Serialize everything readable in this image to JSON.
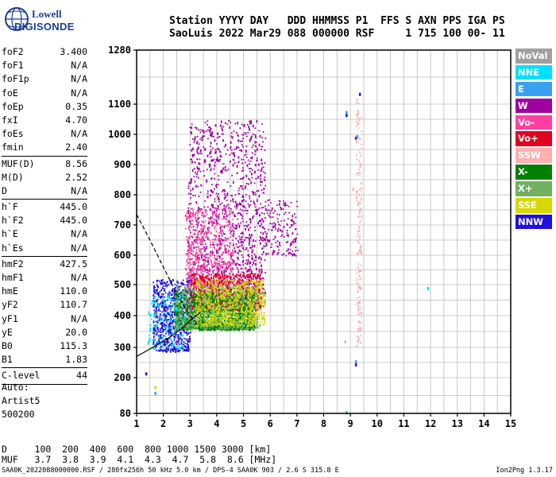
{
  "logo": {
    "line1": "Lowell",
    "line2": "DIGISONDE"
  },
  "header": {
    "line1": "Station YYYY DAY   DDD HHMMSS P1  FFS S AXN PPS IGA PS",
    "line2": "SaoLuis 2022 Mar29 088 000000 RSF     1 715 100 00- 11"
  },
  "params": [
    {
      "name": "foF2",
      "value": "3.400"
    },
    {
      "name": "foF1",
      "value": "N/A"
    },
    {
      "name": "foF1p",
      "value": "N/A"
    },
    {
      "name": "foE",
      "value": "N/A"
    },
    {
      "name": "foEp",
      "value": "0.35"
    },
    {
      "name": "fxI",
      "value": "4.70"
    },
    {
      "name": "foEs",
      "value": "N/A"
    },
    {
      "name": "fmin",
      "value": "2.40"
    },
    {
      "sep": true
    },
    {
      "name": "MUF(D)",
      "value": "8.56"
    },
    {
      "name": "M(D)",
      "value": "2.52"
    },
    {
      "name": "D",
      "value": "N/A"
    },
    {
      "sep": true
    },
    {
      "name": "h`F",
      "value": "445.0"
    },
    {
      "name": "h`F2",
      "value": "445.0"
    },
    {
      "name": "h`E",
      "value": "N/A"
    },
    {
      "name": "h`Es",
      "value": "N/A"
    },
    {
      "sep": true
    },
    {
      "name": "hmF2",
      "value": "427.5"
    },
    {
      "name": "hmF1",
      "value": "N/A"
    },
    {
      "name": "hmE",
      "value": "110.0"
    },
    {
      "name": "yF2",
      "value": "110.7"
    },
    {
      "name": "yF1",
      "value": "N/A"
    },
    {
      "name": "yE",
      "value": "20.0"
    },
    {
      "name": "B0",
      "value": "115.3"
    },
    {
      "name": "B1",
      "value": "1.83"
    },
    {
      "sep": true
    },
    {
      "name": "C-level",
      "value": "44"
    },
    {
      "sep": true
    }
  ],
  "autoscale": [
    "Auto:",
    "Artist5",
    "500200"
  ],
  "legend": [
    {
      "label": "NoVal",
      "color": "#a0a0a0"
    },
    {
      "label": "NNE",
      "color": "#00e0ff"
    },
    {
      "label": "E",
      "color": "#3aa0f0"
    },
    {
      "label": "W",
      "color": "#a000a0"
    },
    {
      "label": "Vo-",
      "color": "#ff40a0"
    },
    {
      "label": "Vo+",
      "color": "#e00020"
    },
    {
      "label": "SSW",
      "color": "#ffb0b0"
    },
    {
      "label": "X-",
      "color": "#008000"
    },
    {
      "label": "X+",
      "color": "#70b060"
    },
    {
      "label": "SSE",
      "color": "#d8d800"
    },
    {
      "label": "NNW",
      "color": "#2010e0"
    }
  ],
  "muf_table": {
    "line1": "D     100  200  400  600  800 1000 1500 3000 [km]",
    "line2": "MUF   3.7  3.8  3.9  4.1  4.3  4.7  5.8  8.6 [MHz]"
  },
  "footer": {
    "left": "SAA0K_2022088000000.RSF / 280fx256h 50 kHz 5.0 km / DPS-4 SAA0K 903 / 2.6 S 315.8 E",
    "right": "Ion2Png 1.3.17"
  },
  "chart_data": {
    "type": "scatter",
    "title": "",
    "xlabel": "",
    "ylabel": "",
    "xlim": [
      1,
      15
    ],
    "ylim": [
      80,
      1280
    ],
    "x_ticks": [
      1,
      2,
      3,
      4,
      5,
      6,
      7,
      8,
      9,
      10,
      11,
      12,
      13,
      14,
      15
    ],
    "y_ticks": [
      80,
      200,
      300,
      400,
      500,
      600,
      700,
      800,
      900,
      1000,
      1100,
      1280
    ],
    "y_tick_labels": [
      "80",
      "200",
      "300",
      "400",
      "500",
      "600",
      "700",
      "800",
      "900",
      "1000",
      "1100",
      "1280"
    ],
    "y_scale": "nonlinear",
    "grid": true,
    "legend_position": "right",
    "echo_regions": [
      {
        "series": "W",
        "x_range": [
          2.9,
          5.8
        ],
        "y_range": [
          430,
          1050
        ],
        "density": "high"
      },
      {
        "series": "W",
        "x_range": [
          5.8,
          7.0
        ],
        "y_range": [
          600,
          790
        ],
        "density": "low"
      },
      {
        "series": "Vo-",
        "x_range": [
          2.8,
          4.6
        ],
        "y_range": [
          430,
          760
        ],
        "density": "medium"
      },
      {
        "series": "Vo+",
        "x_range": [
          3.0,
          5.6
        ],
        "y_range": [
          420,
          540
        ],
        "density": "medium"
      },
      {
        "series": "NNW",
        "x_range": [
          1.6,
          3.0
        ],
        "y_range": [
          290,
          520
        ],
        "density": "medium"
      },
      {
        "series": "X-",
        "x_range": [
          2.4,
          5.4
        ],
        "y_range": [
          360,
          480
        ],
        "density": "high"
      },
      {
        "series": "X+",
        "x_range": [
          2.4,
          5.6
        ],
        "y_range": [
          360,
          500
        ],
        "density": "medium"
      },
      {
        "series": "SSE",
        "x_range": [
          3.2,
          5.8
        ],
        "y_range": [
          370,
          520
        ],
        "density": "medium"
      },
      {
        "series": "NNE",
        "x_range": [
          1.4,
          2.8
        ],
        "y_range": [
          300,
          470
        ],
        "density": "low"
      },
      {
        "series": "SSW",
        "x_range": [
          9.2,
          9.4
        ],
        "y_range": [
          300,
          1120
        ],
        "density": "low"
      }
    ],
    "isolated_points": [
      {
        "series": "NNW",
        "x": 9.35,
        "y": 1135
      },
      {
        "series": "NNW",
        "x": 8.85,
        "y": 1065
      },
      {
        "series": "E",
        "x": 8.85,
        "y": 1075
      },
      {
        "series": "NNW",
        "x": 9.2,
        "y": 990
      },
      {
        "series": "E",
        "x": 9.25,
        "y": 995
      },
      {
        "series": "NNW",
        "x": 9.2,
        "y": 245
      },
      {
        "series": "E",
        "x": 9.2,
        "y": 255
      },
      {
        "series": "E",
        "x": 8.85,
        "y": 85
      },
      {
        "series": "NNE",
        "x": 11.9,
        "y": 490
      },
      {
        "series": "NNW",
        "x": 1.35,
        "y": 215
      },
      {
        "series": "E",
        "x": 1.7,
        "y": 150
      },
      {
        "series": "SSE",
        "x": 1.7,
        "y": 170
      },
      {
        "series": "SSW",
        "x": 8.8,
        "y": 320
      },
      {
        "series": "SSW",
        "x": 9.1,
        "y": 820
      }
    ],
    "profile_curves": [
      {
        "name": "dashed",
        "points": [
          [
            1.0,
            735
          ],
          [
            1.5,
            650
          ],
          [
            2.0,
            560
          ],
          [
            2.5,
            470
          ],
          [
            3.0,
            400
          ],
          [
            3.3,
            370
          ]
        ]
      },
      {
        "name": "solid",
        "points": [
          [
            1.0,
            270
          ],
          [
            1.6,
            300
          ],
          [
            2.2,
            330
          ],
          [
            2.7,
            360
          ],
          [
            3.0,
            385
          ],
          [
            3.3,
            405
          ],
          [
            3.4,
            412
          ]
        ]
      }
    ]
  }
}
